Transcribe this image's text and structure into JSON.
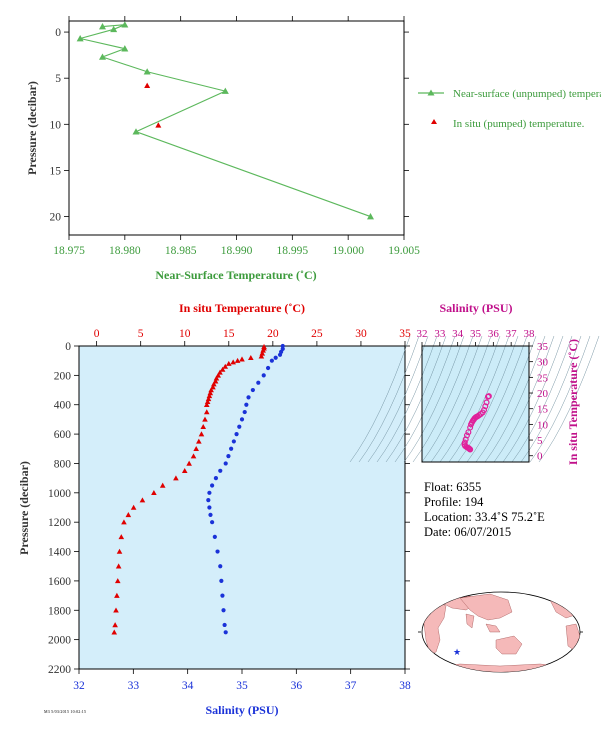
{
  "chart_data": [
    {
      "type": "line",
      "name": "near-surface",
      "xlabel": "Near-Surface Temperature (˚C)",
      "ylabel": "Pressure (decibar)",
      "xlim": [
        18.975,
        19.005
      ],
      "ylim": [
        0,
        22
      ],
      "y_inverted": true,
      "xticks": [
        "18.975",
        "18.980",
        "18.985",
        "18.990",
        "18.995",
        "19.000",
        "19.005"
      ],
      "yticks": [
        "0",
        "5",
        "10",
        "15",
        "20"
      ],
      "series": [
        {
          "name": "Near-surface (unpumped) temperature.",
          "color": "#5cb85c",
          "marker": "triangle",
          "points": [
            [
              18.978,
              -0.6
            ],
            [
              18.98,
              -0.8
            ],
            [
              18.979,
              -0.3
            ],
            [
              18.976,
              0.7
            ],
            [
              18.98,
              1.8
            ],
            [
              18.978,
              2.7
            ],
            [
              18.982,
              4.3
            ],
            [
              18.989,
              6.4
            ],
            [
              18.981,
              10.8
            ],
            [
              19.002,
              20.0
            ]
          ]
        },
        {
          "name": "In situ (pumped) temperature.",
          "color": "#e00000",
          "marker": "triangle",
          "points": [
            [
              18.982,
              5.8
            ],
            [
              18.983,
              10.1
            ]
          ]
        }
      ],
      "legend": "right"
    },
    {
      "type": "scatter",
      "name": "profile",
      "top_axis_label": "In situ Temperature (˚C)",
      "bottom_axis_label": "Salinity (PSU)",
      "ylabel": "Pressure (decibar)",
      "temp_range": [
        -2,
        35
      ],
      "sal_range": [
        32,
        38
      ],
      "pres_range": [
        0,
        2200
      ],
      "temp_ticks": [
        "0",
        "5",
        "10",
        "15",
        "20",
        "25",
        "30",
        "35"
      ],
      "sal_ticks": [
        "32",
        "33",
        "34",
        "35",
        "36",
        "37",
        "38"
      ],
      "pres_ticks": [
        "0",
        "200",
        "400",
        "600",
        "800",
        "1000",
        "1200",
        "1400",
        "1600",
        "1800",
        "2000",
        "2200"
      ],
      "temperature": {
        "color": "#e00000",
        "marker": "triangle",
        "points": [
          [
            19.0,
            5
          ],
          [
            19.0,
            15
          ],
          [
            18.9,
            30
          ],
          [
            18.8,
            50
          ],
          [
            18.7,
            70
          ],
          [
            17.5,
            80
          ],
          [
            16.5,
            90
          ],
          [
            16.0,
            100
          ],
          [
            15.5,
            110
          ],
          [
            15.0,
            120
          ],
          [
            14.6,
            140
          ],
          [
            14.3,
            160
          ],
          [
            14.0,
            180
          ],
          [
            13.8,
            200
          ],
          [
            13.6,
            220
          ],
          [
            13.5,
            240
          ],
          [
            13.3,
            260
          ],
          [
            13.2,
            280
          ],
          [
            13.0,
            300
          ],
          [
            12.9,
            320
          ],
          [
            12.8,
            340
          ],
          [
            12.7,
            360
          ],
          [
            12.6,
            380
          ],
          [
            12.5,
            400
          ],
          [
            12.5,
            450
          ],
          [
            12.3,
            500
          ],
          [
            12.1,
            550
          ],
          [
            11.9,
            600
          ],
          [
            11.6,
            650
          ],
          [
            11.3,
            700
          ],
          [
            11.0,
            750
          ],
          [
            10.5,
            800
          ],
          [
            10.0,
            850
          ],
          [
            9.0,
            900
          ],
          [
            7.5,
            950
          ],
          [
            6.5,
            1000
          ],
          [
            5.2,
            1050
          ],
          [
            4.2,
            1100
          ],
          [
            3.6,
            1150
          ],
          [
            3.1,
            1200
          ],
          [
            2.8,
            1300
          ],
          [
            2.6,
            1400
          ],
          [
            2.5,
            1500
          ],
          [
            2.4,
            1600
          ],
          [
            2.3,
            1700
          ],
          [
            2.2,
            1800
          ],
          [
            2.1,
            1900
          ],
          [
            2.0,
            1950
          ]
        ]
      },
      "salinity": {
        "color": "#1a32d8",
        "marker": "circle",
        "points": [
          [
            35.75,
            0
          ],
          [
            35.75,
            20
          ],
          [
            35.72,
            40
          ],
          [
            35.7,
            60
          ],
          [
            35.62,
            80
          ],
          [
            35.55,
            100
          ],
          [
            35.48,
            150
          ],
          [
            35.4,
            200
          ],
          [
            35.3,
            250
          ],
          [
            35.2,
            300
          ],
          [
            35.12,
            350
          ],
          [
            35.08,
            400
          ],
          [
            35.05,
            450
          ],
          [
            35.0,
            500
          ],
          [
            34.95,
            550
          ],
          [
            34.9,
            600
          ],
          [
            34.85,
            650
          ],
          [
            34.8,
            700
          ],
          [
            34.75,
            750
          ],
          [
            34.7,
            800
          ],
          [
            34.6,
            850
          ],
          [
            34.52,
            900
          ],
          [
            34.45,
            950
          ],
          [
            34.4,
            1000
          ],
          [
            34.38,
            1050
          ],
          [
            34.4,
            1100
          ],
          [
            34.42,
            1150
          ],
          [
            34.45,
            1200
          ],
          [
            34.5,
            1300
          ],
          [
            34.55,
            1400
          ],
          [
            34.6,
            1500
          ],
          [
            34.62,
            1600
          ],
          [
            34.64,
            1700
          ],
          [
            34.66,
            1800
          ],
          [
            34.68,
            1900
          ],
          [
            34.7,
            1950
          ]
        ]
      }
    },
    {
      "type": "scatter",
      "name": "ts-diagram",
      "xlabel": "Salinity (PSU)",
      "ylabel": "In situ Temperature (˚C)",
      "xlim": [
        32,
        38
      ],
      "ylim": [
        -2,
        35
      ],
      "xticks": [
        "32",
        "33",
        "34",
        "35",
        "36",
        "37",
        "38"
      ],
      "yticks": [
        "0",
        "5",
        "10",
        "15",
        "20",
        "25",
        "30",
        "35"
      ],
      "color": "#e0209a",
      "points": [
        [
          35.75,
          19
        ],
        [
          35.7,
          18.8
        ],
        [
          35.62,
          17
        ],
        [
          35.55,
          15.8
        ],
        [
          35.48,
          14.6
        ],
        [
          35.4,
          13.8
        ],
        [
          35.3,
          13.3
        ],
        [
          35.2,
          12.9
        ],
        [
          35.12,
          12.6
        ],
        [
          35.05,
          12.4
        ],
        [
          35.0,
          12.2
        ],
        [
          34.95,
          11.9
        ],
        [
          34.9,
          11.5
        ],
        [
          34.85,
          11.1
        ],
        [
          34.8,
          10.6
        ],
        [
          34.75,
          10.0
        ],
        [
          34.7,
          9.0
        ],
        [
          34.6,
          7.5
        ],
        [
          34.52,
          6.5
        ],
        [
          34.45,
          5.2
        ],
        [
          34.4,
          4.2
        ],
        [
          34.38,
          3.6
        ],
        [
          34.42,
          3.1
        ],
        [
          34.5,
          2.8
        ],
        [
          34.55,
          2.6
        ],
        [
          34.6,
          2.5
        ],
        [
          34.64,
          2.3
        ],
        [
          34.68,
          2.1
        ],
        [
          34.7,
          2.0
        ]
      ]
    }
  ],
  "float_info": {
    "float": "Float: 6355",
    "profile": "Profile: 194",
    "location": "Location: 33.4˚S 75.2˚E",
    "date": "Date: 06/07/2015"
  },
  "footer": "M3 5/03/2015 10:02:15",
  "colors": {
    "green": "#5cb85c",
    "green_text": "#3c9b3c",
    "red": "#e00000",
    "blue": "#1a32d8",
    "magenta": "#e0209a",
    "panel_bg": "#d4eefa",
    "ts_bg": "#ccecf8",
    "map_land": "#f5b9b9",
    "map_ocean": "#ffffff"
  }
}
